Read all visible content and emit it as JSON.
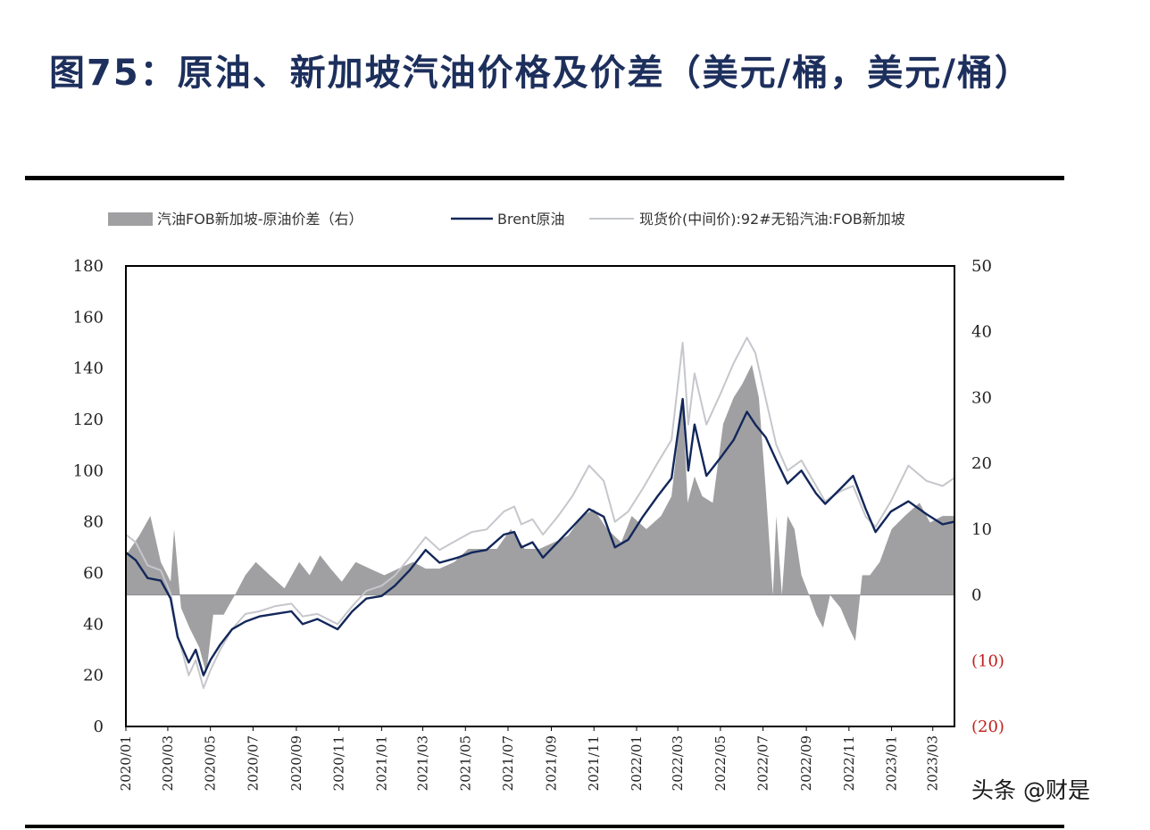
{
  "page": {
    "title": "图75：原油、新加坡汽油价格及价差（美元/桶，美元/桶）",
    "watermark": "头条 @财是"
  },
  "chart_data": {
    "type": "line",
    "legend": {
      "placement": "top",
      "entries": [
        {
          "label": "汽油FOB新加坡-原油价差（右）",
          "style": "area",
          "color": "#a0a0a2"
        },
        {
          "label": "Brent原油",
          "style": "line",
          "color": "#12275a"
        },
        {
          "label": "现货价(中间价):92#无铅汽油:FOB新加坡",
          "style": "line",
          "color": "#c5c7cc"
        }
      ]
    },
    "x_ticks": [
      "2020/01",
      "2020/03",
      "2020/05",
      "2020/07",
      "2020/09",
      "2020/11",
      "2021/01",
      "2021/03",
      "2021/05",
      "2021/07",
      "2021/09",
      "2021/11",
      "2022/01",
      "2022/03",
      "2022/05",
      "2022/07",
      "2022/09",
      "2022/11",
      "2023/01",
      "2023/03"
    ],
    "y_left": {
      "ticks": [
        "0",
        "20",
        "40",
        "60",
        "80",
        "100",
        "120",
        "140",
        "160",
        "180"
      ],
      "ylim": [
        0,
        180
      ]
    },
    "y_right": {
      "ticks": [
        "(20)",
        "(10)",
        "0",
        "10",
        "20",
        "30",
        "40",
        "50"
      ],
      "negative_color": "#c0201b",
      "ylim": [
        -20,
        50
      ]
    },
    "grid": false,
    "series": [
      {
        "name": "Brent原油",
        "axis": "left",
        "type": "line",
        "color": "#12275a",
        "points": [
          [
            "2020-01-01",
            68
          ],
          [
            "2020-01-15",
            65
          ],
          [
            "2020-02-01",
            58
          ],
          [
            "2020-02-20",
            57
          ],
          [
            "2020-03-05",
            50
          ],
          [
            "2020-03-15",
            35
          ],
          [
            "2020-03-31",
            25
          ],
          [
            "2020-04-10",
            30
          ],
          [
            "2020-04-21",
            20
          ],
          [
            "2020-05-01",
            26
          ],
          [
            "2020-05-15",
            32
          ],
          [
            "2020-06-01",
            38
          ],
          [
            "2020-06-20",
            41
          ],
          [
            "2020-07-10",
            43
          ],
          [
            "2020-08-01",
            44
          ],
          [
            "2020-08-25",
            45
          ],
          [
            "2020-09-10",
            40
          ],
          [
            "2020-10-01",
            42
          ],
          [
            "2020-10-30",
            38
          ],
          [
            "2020-11-20",
            45
          ],
          [
            "2020-12-10",
            50
          ],
          [
            "2021-01-01",
            51
          ],
          [
            "2021-01-20",
            55
          ],
          [
            "2021-02-10",
            61
          ],
          [
            "2021-03-05",
            69
          ],
          [
            "2021-03-25",
            64
          ],
          [
            "2021-04-20",
            66
          ],
          [
            "2021-05-10",
            68
          ],
          [
            "2021-05-31",
            69
          ],
          [
            "2021-06-25",
            75
          ],
          [
            "2021-07-10",
            76
          ],
          [
            "2021-07-20",
            70
          ],
          [
            "2021-08-05",
            72
          ],
          [
            "2021-08-20",
            66
          ],
          [
            "2021-09-10",
            72
          ],
          [
            "2021-10-01",
            78
          ],
          [
            "2021-10-25",
            85
          ],
          [
            "2021-11-15",
            82
          ],
          [
            "2021-12-01",
            70
          ],
          [
            "2021-12-20",
            73
          ],
          [
            "2022-01-10",
            82
          ],
          [
            "2022-01-31",
            90
          ],
          [
            "2022-02-20",
            97
          ],
          [
            "2022-03-08",
            128
          ],
          [
            "2022-03-16",
            100
          ],
          [
            "2022-03-25",
            118
          ],
          [
            "2022-04-11",
            98
          ],
          [
            "2022-05-01",
            105
          ],
          [
            "2022-05-20",
            112
          ],
          [
            "2022-06-08",
            123
          ],
          [
            "2022-06-20",
            118
          ],
          [
            "2022-07-05",
            113
          ],
          [
            "2022-07-20",
            104
          ],
          [
            "2022-08-05",
            95
          ],
          [
            "2022-08-25",
            100
          ],
          [
            "2022-09-15",
            91
          ],
          [
            "2022-09-28",
            87
          ],
          [
            "2022-10-20",
            93
          ],
          [
            "2022-11-07",
            98
          ],
          [
            "2022-11-25",
            85
          ],
          [
            "2022-12-09",
            76
          ],
          [
            "2022-12-31",
            84
          ],
          [
            "2023-01-25",
            88
          ],
          [
            "2023-02-20",
            83
          ],
          [
            "2023-03-15",
            79
          ],
          [
            "2023-03-31",
            80
          ]
        ]
      },
      {
        "name": "现货价(中间价):92#无铅汽油:FOB新加坡",
        "axis": "left",
        "type": "line",
        "color": "#c5c7cc",
        "points": [
          [
            "2020-01-01",
            75
          ],
          [
            "2020-01-15",
            72
          ],
          [
            "2020-02-01",
            63
          ],
          [
            "2020-02-20",
            61
          ],
          [
            "2020-03-05",
            52
          ],
          [
            "2020-03-15",
            36
          ],
          [
            "2020-03-31",
            20
          ],
          [
            "2020-04-10",
            26
          ],
          [
            "2020-04-21",
            15
          ],
          [
            "2020-05-01",
            22
          ],
          [
            "2020-05-15",
            30
          ],
          [
            "2020-06-01",
            38
          ],
          [
            "2020-06-20",
            44
          ],
          [
            "2020-07-10",
            45
          ],
          [
            "2020-08-01",
            47
          ],
          [
            "2020-08-25",
            48
          ],
          [
            "2020-09-10",
            43
          ],
          [
            "2020-10-01",
            44
          ],
          [
            "2020-10-30",
            40
          ],
          [
            "2020-11-20",
            47
          ],
          [
            "2020-12-10",
            53
          ],
          [
            "2021-01-01",
            55
          ],
          [
            "2021-01-20",
            59
          ],
          [
            "2021-02-10",
            66
          ],
          [
            "2021-03-05",
            74
          ],
          [
            "2021-03-25",
            69
          ],
          [
            "2021-04-20",
            73
          ],
          [
            "2021-05-10",
            76
          ],
          [
            "2021-05-31",
            77
          ],
          [
            "2021-06-25",
            84
          ],
          [
            "2021-07-10",
            86
          ],
          [
            "2021-07-20",
            79
          ],
          [
            "2021-08-05",
            81
          ],
          [
            "2021-08-20",
            75
          ],
          [
            "2021-09-10",
            82
          ],
          [
            "2021-10-01",
            90
          ],
          [
            "2021-10-25",
            102
          ],
          [
            "2021-11-15",
            96
          ],
          [
            "2021-12-01",
            80
          ],
          [
            "2021-12-20",
            84
          ],
          [
            "2022-01-10",
            93
          ],
          [
            "2022-01-31",
            103
          ],
          [
            "2022-02-20",
            112
          ],
          [
            "2022-03-08",
            150
          ],
          [
            "2022-03-16",
            118
          ],
          [
            "2022-03-25",
            138
          ],
          [
            "2022-04-11",
            118
          ],
          [
            "2022-05-01",
            130
          ],
          [
            "2022-05-20",
            142
          ],
          [
            "2022-06-08",
            152
          ],
          [
            "2022-06-20",
            146
          ],
          [
            "2022-07-05",
            128
          ],
          [
            "2022-07-20",
            110
          ],
          [
            "2022-08-05",
            100
          ],
          [
            "2022-08-25",
            104
          ],
          [
            "2022-09-15",
            94
          ],
          [
            "2022-09-28",
            88
          ],
          [
            "2022-10-20",
            92
          ],
          [
            "2022-11-07",
            94
          ],
          [
            "2022-11-25",
            82
          ],
          [
            "2022-12-09",
            78
          ],
          [
            "2022-12-31",
            88
          ],
          [
            "2023-01-25",
            102
          ],
          [
            "2023-02-20",
            96
          ],
          [
            "2023-03-15",
            94
          ],
          [
            "2023-03-31",
            97
          ]
        ]
      },
      {
        "name": "汽油FOB新加坡-原油价差（右）",
        "axis": "right",
        "type": "area",
        "color": "#a0a0a2",
        "points": [
          [
            "2020-01-01",
            6
          ],
          [
            "2020-01-20",
            9
          ],
          [
            "2020-02-05",
            12
          ],
          [
            "2020-02-20",
            5
          ],
          [
            "2020-03-05",
            2
          ],
          [
            "2020-03-10",
            10
          ],
          [
            "2020-03-20",
            -2
          ],
          [
            "2020-04-01",
            -5
          ],
          [
            "2020-04-15",
            -8
          ],
          [
            "2020-04-25",
            -12
          ],
          [
            "2020-05-05",
            -3
          ],
          [
            "2020-05-20",
            -3
          ],
          [
            "2020-06-05",
            0
          ],
          [
            "2020-06-20",
            3
          ],
          [
            "2020-07-05",
            5
          ],
          [
            "2020-07-25",
            3
          ],
          [
            "2020-08-15",
            1
          ],
          [
            "2020-09-05",
            5
          ],
          [
            "2020-09-20",
            3
          ],
          [
            "2020-10-05",
            6
          ],
          [
            "2020-10-20",
            4
          ],
          [
            "2020-11-05",
            2
          ],
          [
            "2020-11-25",
            5
          ],
          [
            "2020-12-15",
            4
          ],
          [
            "2021-01-05",
            3
          ],
          [
            "2021-01-25",
            4
          ],
          [
            "2021-02-15",
            5
          ],
          [
            "2021-03-05",
            4
          ],
          [
            "2021-03-25",
            4
          ],
          [
            "2021-04-15",
            5
          ],
          [
            "2021-05-05",
            7
          ],
          [
            "2021-05-25",
            7
          ],
          [
            "2021-06-15",
            7
          ],
          [
            "2021-07-05",
            10
          ],
          [
            "2021-07-25",
            7
          ],
          [
            "2021-08-15",
            7
          ],
          [
            "2021-09-05",
            8
          ],
          [
            "2021-09-25",
            9
          ],
          [
            "2021-10-15",
            12
          ],
          [
            "2021-11-01",
            13
          ],
          [
            "2021-11-20",
            10
          ],
          [
            "2021-12-10",
            8
          ],
          [
            "2021-12-25",
            12
          ],
          [
            "2022-01-15",
            10
          ],
          [
            "2022-02-05",
            12
          ],
          [
            "2022-02-20",
            15
          ],
          [
            "2022-03-08",
            30
          ],
          [
            "2022-03-15",
            14
          ],
          [
            "2022-03-25",
            18
          ],
          [
            "2022-04-05",
            15
          ],
          [
            "2022-04-20",
            14
          ],
          [
            "2022-05-05",
            26
          ],
          [
            "2022-05-20",
            30
          ],
          [
            "2022-06-01",
            32
          ],
          [
            "2022-06-15",
            35
          ],
          [
            "2022-06-25",
            30
          ],
          [
            "2022-07-05",
            16
          ],
          [
            "2022-07-15",
            0
          ],
          [
            "2022-07-20",
            12
          ],
          [
            "2022-07-28",
            0
          ],
          [
            "2022-08-05",
            12
          ],
          [
            "2022-08-15",
            10
          ],
          [
            "2022-08-25",
            3
          ],
          [
            "2022-09-05",
            0
          ],
          [
            "2022-09-15",
            -3
          ],
          [
            "2022-09-25",
            -5
          ],
          [
            "2022-10-05",
            0
          ],
          [
            "2022-10-20",
            -2
          ],
          [
            "2022-11-01",
            -5
          ],
          [
            "2022-11-10",
            -7
          ],
          [
            "2022-11-20",
            3
          ],
          [
            "2022-12-01",
            3
          ],
          [
            "2022-12-15",
            5
          ],
          [
            "2023-01-01",
            10
          ],
          [
            "2023-01-20",
            12
          ],
          [
            "2023-02-10",
            14
          ],
          [
            "2023-02-25",
            11
          ],
          [
            "2023-03-15",
            12
          ],
          [
            "2023-03-31",
            12
          ]
        ]
      }
    ]
  }
}
